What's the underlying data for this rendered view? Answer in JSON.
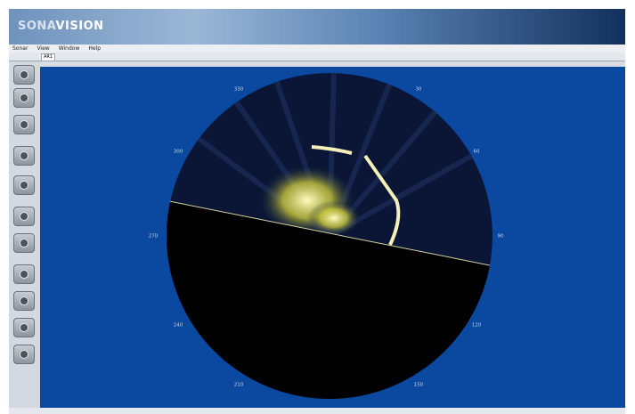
{
  "header": {
    "logo_a": "SONA",
    "logo_b": "VISION"
  },
  "menu": [
    "Sonar",
    "View",
    "Window",
    "Help"
  ],
  "tab": "AR1",
  "bearings": [
    "330",
    "30",
    "300",
    "60",
    "270",
    "90",
    "240",
    "120",
    "210",
    "150"
  ]
}
